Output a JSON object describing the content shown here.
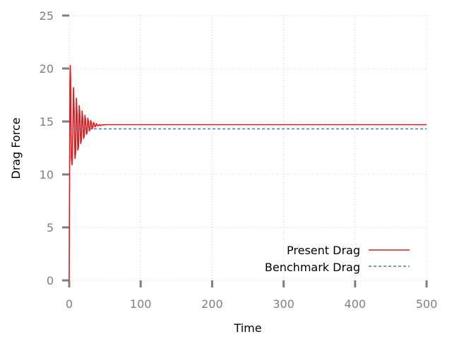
{
  "chart_data": {
    "type": "line",
    "title": "",
    "xlabel": "Time",
    "ylabel": "Drag Force",
    "xlim": [
      0,
      500
    ],
    "ylim": [
      0,
      25
    ],
    "x_ticks": [
      "0",
      "100",
      "200",
      "300",
      "400",
      "500"
    ],
    "y_ticks": [
      "0",
      "5",
      "10",
      "15",
      "20",
      "25"
    ],
    "grid": true,
    "legend_position": "bottom-right",
    "series": [
      {
        "name": "Present Drag",
        "color": "#e41a1c",
        "style": "solid",
        "x": [
          0,
          0.5,
          1,
          1.5,
          2,
          2.5,
          3,
          4,
          5,
          6,
          7,
          8,
          9,
          10,
          11,
          12,
          13,
          14,
          15,
          16,
          17,
          18,
          19,
          20,
          21,
          22,
          23,
          24,
          25,
          26,
          27,
          28,
          29,
          30,
          31,
          32,
          33,
          34,
          35,
          36,
          37,
          38,
          39,
          40,
          41,
          42,
          43,
          44,
          45,
          46,
          47,
          48,
          49,
          50,
          55,
          60,
          80,
          100,
          200,
          300,
          400,
          500
        ],
        "y": [
          0,
          10.0,
          18.5,
          20.3,
          19.0,
          14.5,
          11.5,
          10.9,
          13.5,
          18.2,
          16.0,
          11.5,
          12.0,
          17.2,
          15.8,
          12.3,
          12.6,
          16.5,
          15.6,
          12.9,
          13.2,
          16.0,
          15.3,
          13.4,
          13.6,
          15.6,
          15.1,
          13.8,
          13.9,
          15.3,
          15.0,
          14.1,
          14.2,
          15.1,
          14.9,
          14.3,
          14.4,
          14.9,
          14.8,
          14.5,
          14.5,
          14.8,
          14.7,
          14.6,
          14.6,
          14.7,
          14.7,
          14.6,
          14.65,
          14.7,
          14.7,
          14.65,
          14.7,
          14.7,
          14.7,
          14.7,
          14.7,
          14.7,
          14.7,
          14.7,
          14.7,
          14.7
        ]
      },
      {
        "name": "Benchmark Drag",
        "color": "#377eb8",
        "style": "dashed",
        "x": [
          0,
          500
        ],
        "y": [
          14.3,
          14.3
        ]
      }
    ]
  }
}
